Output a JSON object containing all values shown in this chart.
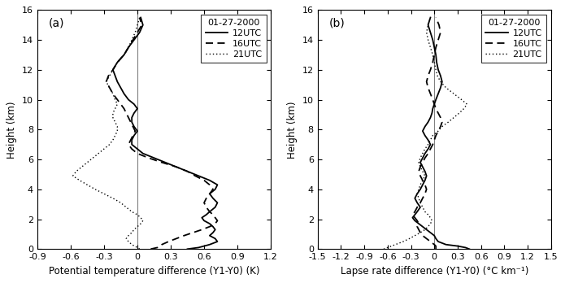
{
  "title_date": "01-27-2000",
  "legend_labels": [
    "12UTC",
    "16UTC",
    "21UTC"
  ],
  "panel_a_label": "(a)",
  "panel_b_label": "(b)",
  "xlabel_a": "Potential temperature difference (Y1-Y0) (K)",
  "xlabel_b": "Lapse rate difference (Y1-Y0) (°C km⁻¹)",
  "ylabel": "Height (km)",
  "xlim_a": [
    -0.9,
    1.2
  ],
  "xlim_b": [
    -1.5,
    1.5
  ],
  "xticks_a": [
    -0.9,
    -0.6,
    -0.3,
    0,
    0.3,
    0.6,
    0.9,
    1.2
  ],
  "xticks_b": [
    -1.5,
    -1.2,
    -0.9,
    -0.6,
    -0.3,
    0,
    0.3,
    0.6,
    0.9,
    1.2,
    1.5
  ],
  "ylim": [
    0,
    16
  ],
  "yticks": [
    0,
    2,
    4,
    6,
    8,
    10,
    12,
    14,
    16
  ],
  "height_a": [
    0.0,
    0.1,
    0.3,
    0.5,
    0.7,
    0.9,
    1.1,
    1.3,
    1.5,
    1.7,
    1.9,
    2.1,
    2.3,
    2.5,
    2.8,
    3.1,
    3.4,
    3.7,
    4.0,
    4.3,
    4.6,
    4.9,
    5.2,
    5.5,
    5.8,
    6.1,
    6.4,
    6.7,
    7.0,
    7.3,
    7.6,
    7.9,
    8.2,
    8.5,
    8.8,
    9.1,
    9.4,
    9.7,
    10.0,
    10.4,
    10.8,
    11.2,
    11.6,
    12.0,
    12.5,
    13.0,
    13.5,
    14.0,
    14.5,
    15.0,
    15.5
  ],
  "ut12_a": [
    0.45,
    0.55,
    0.65,
    0.72,
    0.7,
    0.65,
    0.68,
    0.7,
    0.68,
    0.65,
    0.6,
    0.58,
    0.62,
    0.65,
    0.7,
    0.72,
    0.68,
    0.65,
    0.7,
    0.72,
    0.65,
    0.55,
    0.45,
    0.35,
    0.25,
    0.15,
    0.05,
    0.0,
    -0.05,
    -0.05,
    -0.03,
    0.0,
    -0.03,
    -0.05,
    -0.05,
    -0.03,
    0.0,
    -0.03,
    -0.08,
    -0.12,
    -0.15,
    -0.18,
    -0.2,
    -0.22,
    -0.18,
    -0.12,
    -0.08,
    -0.03,
    0.02,
    0.05,
    0.03
  ],
  "ut16_a": [
    0.12,
    0.18,
    0.22,
    0.28,
    0.35,
    0.42,
    0.5,
    0.58,
    0.65,
    0.7,
    0.72,
    0.7,
    0.68,
    0.65,
    0.62,
    0.6,
    0.62,
    0.65,
    0.68,
    0.65,
    0.6,
    0.52,
    0.45,
    0.35,
    0.22,
    0.1,
    0.0,
    -0.05,
    -0.08,
    -0.06,
    -0.04,
    -0.02,
    -0.04,
    -0.06,
    -0.08,
    -0.1,
    -0.12,
    -0.15,
    -0.18,
    -0.22,
    -0.25,
    -0.28,
    -0.26,
    -0.22,
    -0.18,
    -0.12,
    -0.08,
    -0.04,
    0.0,
    0.04,
    0.02
  ],
  "ut21_a": [
    0.02,
    0.0,
    -0.05,
    -0.08,
    -0.1,
    -0.08,
    -0.05,
    -0.03,
    0.0,
    0.03,
    0.05,
    0.03,
    0.0,
    -0.05,
    -0.1,
    -0.15,
    -0.22,
    -0.3,
    -0.38,
    -0.45,
    -0.52,
    -0.58,
    -0.55,
    -0.5,
    -0.45,
    -0.4,
    -0.35,
    -0.3,
    -0.25,
    -0.22,
    -0.2,
    -0.18,
    -0.18,
    -0.2,
    -0.22,
    -0.22,
    -0.2,
    -0.18,
    -0.2,
    -0.22,
    -0.25,
    -0.28,
    -0.25,
    -0.22,
    -0.18,
    -0.12,
    -0.08,
    -0.05,
    -0.02,
    0.0,
    0.02
  ],
  "height_b": [
    0.0,
    0.1,
    0.2,
    0.3,
    0.5,
    0.7,
    0.9,
    1.1,
    1.3,
    1.5,
    1.7,
    1.9,
    2.1,
    2.3,
    2.5,
    2.8,
    3.1,
    3.4,
    3.7,
    4.0,
    4.3,
    4.6,
    4.9,
    5.2,
    5.5,
    5.8,
    6.1,
    6.4,
    6.7,
    7.0,
    7.3,
    7.6,
    7.9,
    8.2,
    8.5,
    8.8,
    9.1,
    9.4,
    9.7,
    10.0,
    10.4,
    10.8,
    11.2,
    11.6,
    12.0,
    12.5,
    13.0,
    13.5,
    14.0,
    14.5,
    15.0,
    15.5
  ],
  "ut12_b": [
    0.45,
    0.4,
    0.3,
    0.15,
    0.05,
    0.02,
    0.0,
    -0.05,
    -0.1,
    -0.15,
    -0.2,
    -0.25,
    -0.28,
    -0.25,
    -0.22,
    -0.18,
    -0.22,
    -0.25,
    -0.22,
    -0.18,
    -0.15,
    -0.12,
    -0.1,
    -0.12,
    -0.15,
    -0.18,
    -0.15,
    -0.12,
    -0.08,
    -0.05,
    -0.08,
    -0.12,
    -0.15,
    -0.12,
    -0.08,
    -0.05,
    -0.03,
    -0.02,
    0.0,
    0.02,
    0.05,
    0.08,
    0.1,
    0.08,
    0.05,
    0.03,
    0.02,
    0.0,
    -0.02,
    -0.05,
    -0.08,
    -0.05
  ],
  "ut16_b": [
    0.02,
    0.02,
    0.02,
    0.0,
    -0.05,
    -0.1,
    -0.15,
    -0.18,
    -0.2,
    -0.22,
    -0.2,
    -0.22,
    -0.25,
    -0.28,
    -0.25,
    -0.22,
    -0.18,
    -0.15,
    -0.12,
    -0.1,
    -0.12,
    -0.15,
    -0.18,
    -0.2,
    -0.18,
    -0.15,
    -0.12,
    -0.08,
    -0.05,
    -0.02,
    0.0,
    0.02,
    0.05,
    0.08,
    0.1,
    0.08,
    0.05,
    0.02,
    0.0,
    -0.02,
    -0.05,
    -0.08,
    -0.1,
    -0.08,
    -0.05,
    -0.02,
    0.0,
    0.02,
    0.05,
    0.08,
    0.06,
    0.02
  ],
  "ut21_b": [
    -0.65,
    -0.6,
    -0.55,
    -0.5,
    -0.4,
    -0.32,
    -0.25,
    -0.18,
    -0.12,
    -0.08,
    -0.05,
    -0.03,
    -0.05,
    -0.08,
    -0.12,
    -0.15,
    -0.18,
    -0.2,
    -0.22,
    -0.2,
    -0.18,
    -0.15,
    -0.12,
    -0.15,
    -0.18,
    -0.2,
    -0.18,
    -0.15,
    -0.12,
    -0.08,
    -0.05,
    -0.02,
    0.05,
    0.1,
    0.18,
    0.25,
    0.32,
    0.38,
    0.42,
    0.35,
    0.25,
    0.15,
    0.08,
    0.04,
    0.02,
    0.0,
    -0.02,
    -0.05,
    -0.08,
    -0.1,
    -0.08,
    -0.05
  ],
  "line_color": "#000000",
  "zero_line_color": "#808080",
  "bg_color": "#ffffff",
  "fontsize_label": 8.5,
  "fontsize_tick": 8,
  "fontsize_legend": 8,
  "fontsize_panel_label": 10
}
